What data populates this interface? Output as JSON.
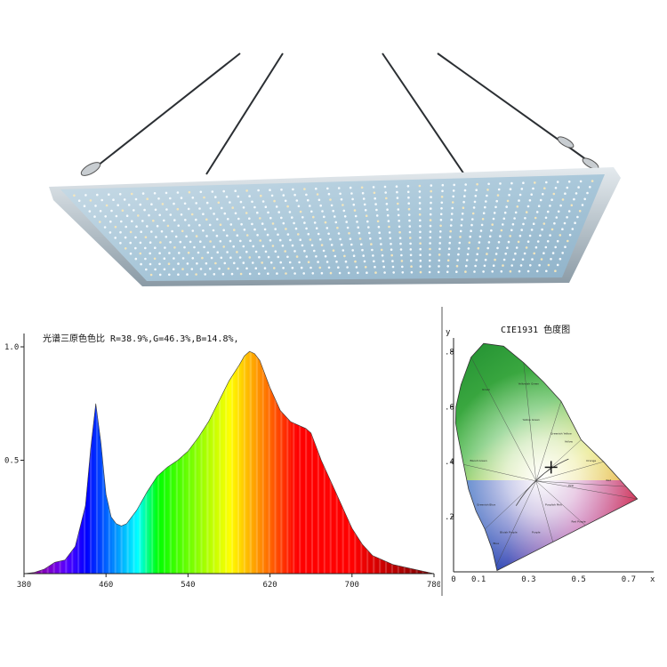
{
  "product": {
    "caption": ""
  },
  "spectrum_chart": {
    "title": "光谱三原色色比  R=38.9%,G=46.3%,B=14.8%,"
  },
  "cie_chart": {
    "title": "CIE1931 色度图",
    "y_axis_label": "y",
    "x_axis_label": "x"
  },
  "chart_data": [
    {
      "type": "area",
      "title": "光谱三原色色比  R=38.9%,G=46.3%,B=14.8%,",
      "xlabel": "",
      "ylabel": "",
      "xlim": [
        380,
        780
      ],
      "ylim": [
        0,
        1.0
      ],
      "x_ticks": [
        "380",
        "460",
        "540",
        "620",
        "700",
        "780"
      ],
      "y_ticks": [
        "1.0",
        "0.5"
      ],
      "x": [
        380,
        390,
        400,
        410,
        420,
        430,
        440,
        445,
        450,
        455,
        460,
        465,
        470,
        475,
        480,
        490,
        500,
        510,
        520,
        530,
        540,
        550,
        560,
        570,
        580,
        590,
        595,
        600,
        605,
        610,
        620,
        630,
        640,
        650,
        655,
        660,
        665,
        670,
        680,
        690,
        700,
        710,
        720,
        740,
        760,
        780
      ],
      "values": [
        0.0,
        0.005,
        0.02,
        0.05,
        0.06,
        0.12,
        0.3,
        0.55,
        0.75,
        0.58,
        0.35,
        0.25,
        0.22,
        0.21,
        0.22,
        0.28,
        0.36,
        0.43,
        0.47,
        0.5,
        0.54,
        0.6,
        0.67,
        0.76,
        0.85,
        0.92,
        0.96,
        0.98,
        0.97,
        0.94,
        0.82,
        0.72,
        0.67,
        0.65,
        0.64,
        0.62,
        0.56,
        0.5,
        0.4,
        0.3,
        0.2,
        0.13,
        0.08,
        0.04,
        0.02,
        0.0
      ],
      "series": [
        {
          "name": "R",
          "share": 38.9
        },
        {
          "name": "G",
          "share": 46.3
        },
        {
          "name": "B",
          "share": 14.8
        }
      ],
      "grid": false
    },
    {
      "type": "scatter",
      "title": "CIE1931 色度图",
      "xlabel": "x",
      "ylabel": "y",
      "xlim": [
        0,
        0.8
      ],
      "ylim": [
        0,
        0.85
      ],
      "x_ticks": [
        "0",
        "0.1",
        "0.3",
        "0.5",
        "0.7"
      ],
      "x_tick_values": [
        0,
        0.1,
        0.3,
        0.5,
        0.7
      ],
      "y_ticks": [
        ".8",
        ".6",
        ".4",
        ".2"
      ],
      "y_tick_values": [
        0.8,
        0.6,
        0.4,
        0.2
      ],
      "point": {
        "x": 0.39,
        "y": 0.38
      },
      "region_labels": [
        "Green",
        "Yellowish Green",
        "Yellow Green",
        "Greenish Yellow",
        "Yellow",
        "Orange",
        "Red",
        "Pink",
        "Purplish Pink",
        "Red Purple",
        "Purple",
        "Bluish Purple",
        "Blue",
        "Greenish Blue",
        "Bluish Green"
      ],
      "grid": false
    }
  ]
}
